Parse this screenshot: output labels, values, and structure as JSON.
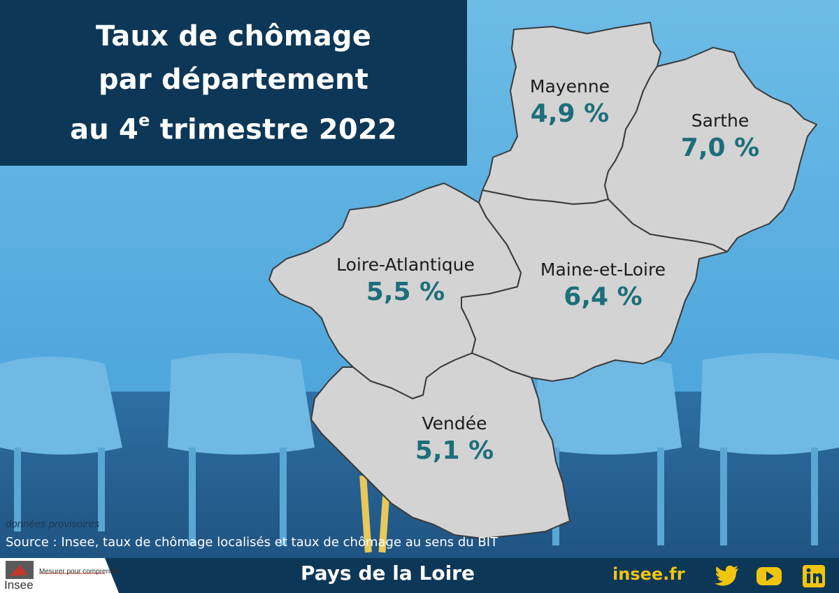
{
  "title": {
    "line1": "Taux de chômage",
    "line2": "par département",
    "line3_prefix": "au 4",
    "line3_sup": "e",
    "line3_suffix": " trimestre 2022"
  },
  "departments": [
    {
      "key": "mayenne",
      "name": "Mayenne",
      "rate": "4,9 %"
    },
    {
      "key": "sarthe",
      "name": "Sarthe",
      "rate": "7,0 %"
    },
    {
      "key": "loire-atlantique",
      "name": "Loire-Atlantique",
      "rate": "5,5 %"
    },
    {
      "key": "maine-et-loire",
      "name": "Maine-et-Loire",
      "rate": "6,4 %"
    },
    {
      "key": "vendee",
      "name": "Vendée",
      "rate": "5,1 %"
    }
  ],
  "footnote": "données provisoires",
  "source": "Source : Insee, taux de chômage localisés et taux de chômage au sens du BIT",
  "footer": {
    "logo": "Insee",
    "tagline": "Mesurer pour comprendre",
    "region": "Pays de la Loire",
    "site": "insee.fr",
    "social_icons": [
      "twitter-icon",
      "youtube-icon",
      "linkedin-icon"
    ]
  },
  "colors": {
    "title_background": "#0d3756",
    "rate_text": "#1d6e7a",
    "map_fill": "#d3d3d3",
    "background": "#5aaee0",
    "accent_yellow": "#f1c40f"
  }
}
